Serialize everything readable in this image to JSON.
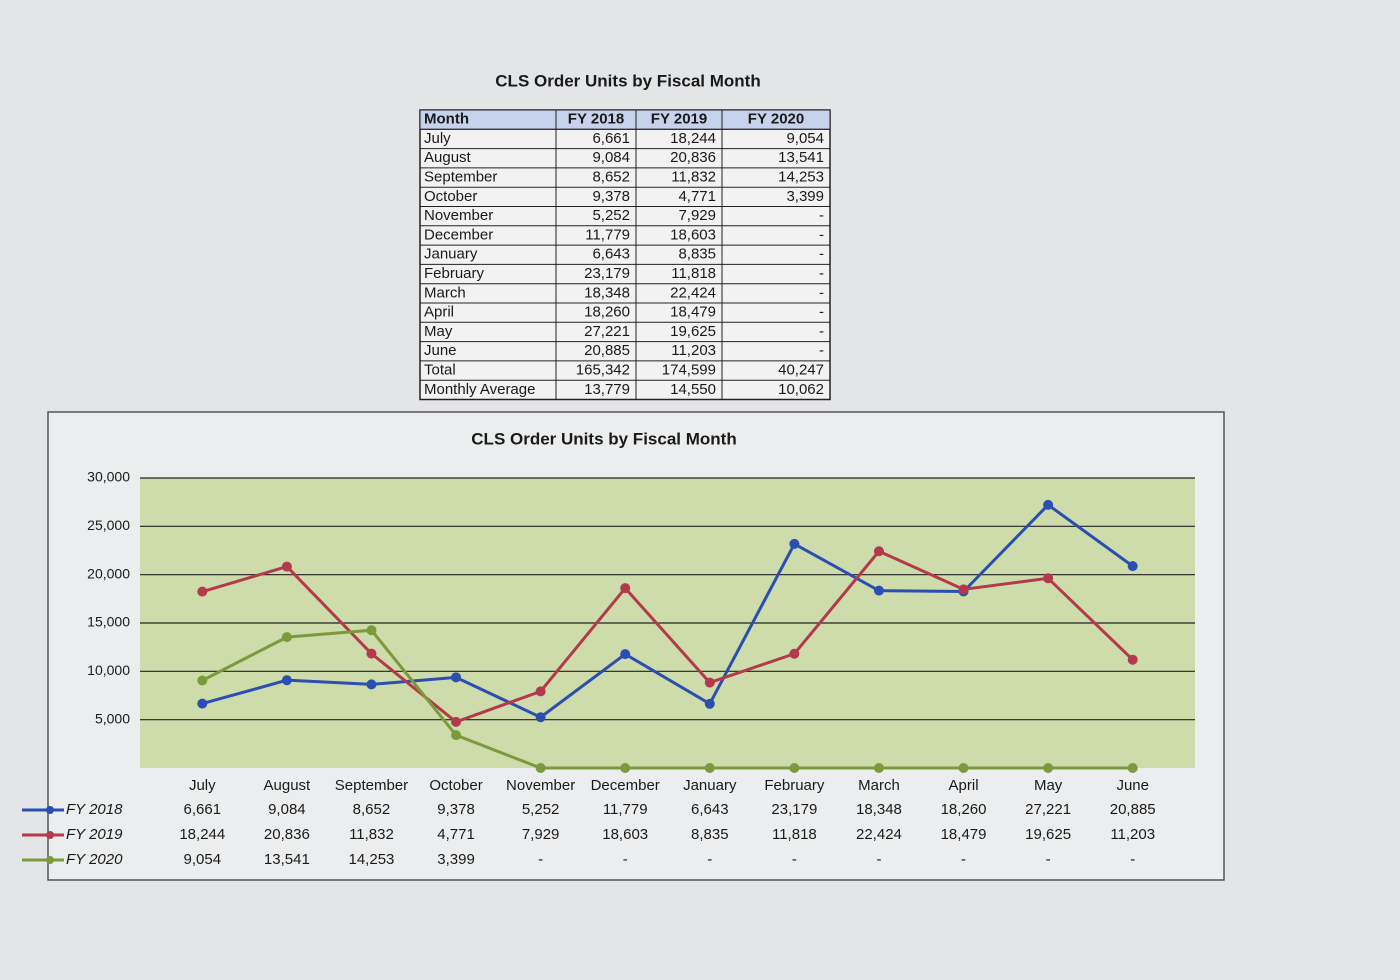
{
  "table": {
    "title": "CLS Order Units by Fiscal Month",
    "header": [
      "Month",
      "FY 2018",
      "FY 2019",
      "FY 2020"
    ],
    "rows": [
      [
        "July",
        "6,661",
        "18,244",
        "9,054"
      ],
      [
        "August",
        "9,084",
        "20,836",
        "13,541"
      ],
      [
        "September",
        "8,652",
        "11,832",
        "14,253"
      ],
      [
        "October",
        "9,378",
        "4,771",
        "3,399"
      ],
      [
        "November",
        "5,252",
        "7,929",
        "-"
      ],
      [
        "December",
        "11,779",
        "18,603",
        "-"
      ],
      [
        "January",
        "6,643",
        "8,835",
        "-"
      ],
      [
        "February",
        "23,179",
        "11,818",
        "-"
      ],
      [
        "March",
        "18,348",
        "22,424",
        "-"
      ],
      [
        "April",
        "18,260",
        "18,479",
        "-"
      ],
      [
        "May",
        "27,221",
        "19,625",
        "-"
      ],
      [
        "June",
        "20,885",
        "11,203",
        "-"
      ],
      [
        "Total",
        "165,342",
        "174,599",
        "40,247"
      ],
      [
        "Monthly Average",
        "13,779",
        "14,550",
        "10,062"
      ]
    ]
  },
  "chart_data": {
    "type": "line",
    "title": "CLS Order Units by Fiscal Month",
    "categories": [
      "July",
      "August",
      "September",
      "October",
      "November",
      "December",
      "January",
      "February",
      "March",
      "April",
      "May",
      "June"
    ],
    "series": [
      {
        "name": "FY 2018",
        "color": "#2a4fb0",
        "values": [
          6661,
          9084,
          8652,
          9378,
          5252,
          11779,
          6643,
          23179,
          18348,
          18260,
          27221,
          20885
        ],
        "value_labels": [
          "6,661",
          "9,084",
          "8,652",
          "9,378",
          "5,252",
          "11,779",
          "6,643",
          "23,179",
          "18,348",
          "18,260",
          "27,221",
          "20,885"
        ]
      },
      {
        "name": "FY 2019",
        "color": "#b23a4c",
        "values": [
          18244,
          20836,
          11832,
          4771,
          7929,
          18603,
          8835,
          11818,
          22424,
          18479,
          19625,
          11203
        ],
        "value_labels": [
          "18,244",
          "20,836",
          "11,832",
          "4,771",
          "7,929",
          "18,603",
          "8,835",
          "11,818",
          "22,424",
          "18,479",
          "19,625",
          "11,203"
        ]
      },
      {
        "name": "FY 2020",
        "color": "#7b9a3c",
        "values": [
          9054,
          13541,
          14253,
          3399,
          0,
          0,
          0,
          0,
          0,
          0,
          0,
          0
        ],
        "value_labels": [
          "9,054",
          "13,541",
          "14,253",
          "3,399",
          "-",
          "-",
          "-",
          "-",
          "-",
          "-",
          "-",
          "-"
        ]
      }
    ],
    "ylim": [
      0,
      30000
    ],
    "yticks": [
      {
        "value": 5000,
        "label": "5,000"
      },
      {
        "value": 10000,
        "label": "10,000"
      },
      {
        "value": 15000,
        "label": "15,000"
      },
      {
        "value": 20000,
        "label": "20,000"
      },
      {
        "value": 25000,
        "label": "25,000"
      },
      {
        "value": 30000,
        "label": "30,000"
      }
    ],
    "grid": true,
    "plot_background": "#cddcaa"
  }
}
